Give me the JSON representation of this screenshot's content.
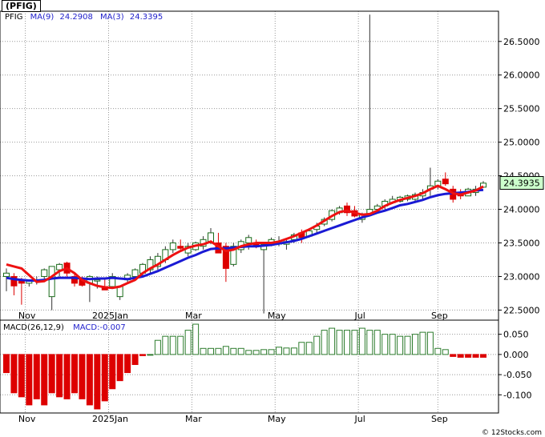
{
  "title": "(PFIG)",
  "credit": "© 12Stocks.com",
  "colors": {
    "up": "#1a6b1a",
    "down": "#dd0000",
    "ma9": "#1a1ad4",
    "ma3": "#ee1111",
    "macd_pos": "#2e7d2e",
    "macd_neg": "#dd0000",
    "grid": "#999999",
    "price_box": "#ccffcc",
    "legend_blue": "#2222cc"
  },
  "chart_data": [
    {
      "type": "candlestick",
      "legend": {
        "symbol": "PFIG",
        "ma9_label": "MA(9)",
        "ma9_value": "24.2908",
        "ma3_label": "MA(3)",
        "ma3_value": "24.3395"
      },
      "last_price": "24.3935",
      "ylim": [
        22.35,
        26.95
      ],
      "y_ticks": [
        "26.5000",
        "26.0000",
        "25.5000",
        "25.0000",
        "24.5000",
        "24.0000",
        "23.5000",
        "23.0000",
        "22.5000"
      ],
      "y_tick_values": [
        26.5,
        26.0,
        25.5,
        25.0,
        24.5,
        24.0,
        23.5,
        23.0,
        22.5
      ],
      "x_ticks": [
        "Nov",
        "2025Jan",
        "Mar",
        "May",
        "Jul",
        "Sep"
      ],
      "x_tick_weeks": [
        2.5,
        13.5,
        24.5,
        35.5,
        46.5,
        57
      ],
      "grid": true,
      "ohlc": [
        [
          23.0,
          23.12,
          22.78,
          23.05
        ],
        [
          23.0,
          23.05,
          22.72,
          22.86
        ],
        [
          22.95,
          22.98,
          22.58,
          22.9
        ],
        [
          22.9,
          22.95,
          22.85,
          22.93
        ],
        [
          22.93,
          23.0,
          22.88,
          22.95
        ],
        [
          23.0,
          23.12,
          22.95,
          23.1
        ],
        [
          22.7,
          23.12,
          22.5,
          23.15
        ],
        [
          23.1,
          23.2,
          23.0,
          23.18
        ],
        [
          23.2,
          23.22,
          23.0,
          23.05
        ],
        [
          23.0,
          23.05,
          22.85,
          22.9
        ],
        [
          22.95,
          23.0,
          22.85,
          22.87
        ],
        [
          22.9,
          23.02,
          22.62,
          23.0
        ],
        [
          22.95,
          23.0,
          22.82,
          22.95
        ],
        [
          22.85,
          22.98,
          22.8,
          22.8
        ],
        [
          22.85,
          23.05,
          22.82,
          23.0
        ],
        [
          22.7,
          22.85,
          22.65,
          22.85
        ],
        [
          22.95,
          23.05,
          22.9,
          23.02
        ],
        [
          23.0,
          23.12,
          22.98,
          23.1
        ],
        [
          23.05,
          23.2,
          23.0,
          23.18
        ],
        [
          23.1,
          23.3,
          23.05,
          23.25
        ],
        [
          23.15,
          23.35,
          23.1,
          23.3
        ],
        [
          23.25,
          23.45,
          23.2,
          23.4
        ],
        [
          23.4,
          23.55,
          23.35,
          23.5
        ],
        [
          23.45,
          23.55,
          23.4,
          23.42
        ],
        [
          23.35,
          23.5,
          23.3,
          23.45
        ],
        [
          23.4,
          23.52,
          23.38,
          23.5
        ],
        [
          23.45,
          23.6,
          23.4,
          23.55
        ],
        [
          23.5,
          23.72,
          23.48,
          23.65
        ],
        [
          23.5,
          23.65,
          23.35,
          23.35
        ],
        [
          23.45,
          23.5,
          22.92,
          23.12
        ],
        [
          23.18,
          23.5,
          23.15,
          23.45
        ],
        [
          23.4,
          23.55,
          23.35,
          23.52
        ],
        [
          23.5,
          23.62,
          23.4,
          23.58
        ],
        [
          23.5,
          23.55,
          23.42,
          23.45
        ],
        [
          23.4,
          23.5,
          22.45,
          23.48
        ],
        [
          23.5,
          23.58,
          23.45,
          23.55
        ],
        [
          23.5,
          23.6,
          23.45,
          23.5
        ],
        [
          23.48,
          23.55,
          23.4,
          23.52
        ],
        [
          23.55,
          23.65,
          23.5,
          23.62
        ],
        [
          23.65,
          23.7,
          23.5,
          23.58
        ],
        [
          23.6,
          23.72,
          23.58,
          23.68
        ],
        [
          23.7,
          23.8,
          23.65,
          23.75
        ],
        [
          23.78,
          23.88,
          23.75,
          23.85
        ],
        [
          23.85,
          24.0,
          23.82,
          23.98
        ],
        [
          23.95,
          24.05,
          23.92,
          24.02
        ],
        [
          24.05,
          24.1,
          23.9,
          23.95
        ],
        [
          23.98,
          24.05,
          23.88,
          23.9
        ],
        [
          23.85,
          23.95,
          23.8,
          23.92
        ],
        [
          23.92,
          26.9,
          23.9,
          24.0
        ],
        [
          24.0,
          24.08,
          23.95,
          24.05
        ],
        [
          24.05,
          24.15,
          24.0,
          24.12
        ],
        [
          24.1,
          24.2,
          24.08,
          24.15
        ],
        [
          24.12,
          24.2,
          24.1,
          24.18
        ],
        [
          24.15,
          24.22,
          24.12,
          24.2
        ],
        [
          24.15,
          24.25,
          24.12,
          24.22
        ],
        [
          24.2,
          24.3,
          24.15,
          24.25
        ],
        [
          24.3,
          24.62,
          24.2,
          24.35
        ],
        [
          24.35,
          24.45,
          24.3,
          24.42
        ],
        [
          24.45,
          24.55,
          24.35,
          24.38
        ],
        [
          24.3,
          24.35,
          24.1,
          24.15
        ],
        [
          24.25,
          24.3,
          24.15,
          24.2
        ],
        [
          24.2,
          24.32,
          24.2,
          24.3
        ],
        [
          24.25,
          24.35,
          24.2,
          24.3
        ],
        [
          24.33,
          24.42,
          24.32,
          24.39
        ]
      ],
      "ma9": [
        22.98,
        22.96,
        22.95,
        22.94,
        22.94,
        22.95,
        22.97,
        22.98,
        22.98,
        22.98,
        22.97,
        22.96,
        22.97,
        22.97,
        22.98,
        22.97,
        22.96,
        22.98,
        23.0,
        23.04,
        23.08,
        23.13,
        23.18,
        23.23,
        23.28,
        23.32,
        23.37,
        23.41,
        23.42,
        23.42,
        23.43,
        23.44,
        23.45,
        23.45,
        23.46,
        23.47,
        23.49,
        23.51,
        23.53,
        23.56,
        23.6,
        23.64,
        23.68,
        23.72,
        23.76,
        23.8,
        23.84,
        23.88,
        23.91,
        23.95,
        23.98,
        24.02,
        24.06,
        24.08,
        24.11,
        24.14,
        24.18,
        24.21,
        24.23,
        24.24,
        24.25,
        24.26,
        24.28,
        24.29
      ],
      "ma3": [
        23.18,
        23.15,
        23.12,
        23.02,
        22.92,
        22.93,
        23.0,
        23.08,
        23.12,
        23.05,
        22.95,
        22.9,
        22.86,
        22.84,
        22.83,
        22.85,
        22.9,
        22.95,
        23.05,
        23.12,
        23.18,
        23.25,
        23.32,
        23.38,
        23.43,
        23.46,
        23.48,
        23.52,
        23.45,
        23.38,
        23.4,
        23.45,
        23.48,
        23.5,
        23.5,
        23.5,
        23.52,
        23.56,
        23.6,
        23.65,
        23.7,
        23.76,
        23.83,
        23.9,
        23.96,
        23.98,
        23.95,
        23.92,
        23.93,
        23.98,
        24.05,
        24.1,
        24.14,
        24.17,
        24.2,
        24.24,
        24.3,
        24.35,
        24.3,
        24.24,
        24.22,
        24.25,
        24.28,
        24.34
      ]
    },
    {
      "type": "bar",
      "legend": {
        "label": "MACD(26,12,9)",
        "value_label": "MACD:-0.007"
      },
      "ylim": [
        -0.145,
        0.085
      ],
      "y_ticks": [
        "0.050",
        "0.000",
        "-0.050",
        "-0.100"
      ],
      "y_tick_values": [
        0.05,
        0.0,
        -0.05,
        -0.1
      ],
      "x_ticks": [
        "Nov",
        "2025Jan",
        "Mar",
        "May",
        "Jul",
        "Sep"
      ],
      "values": [
        -0.045,
        -0.095,
        -0.105,
        -0.125,
        -0.11,
        -0.125,
        -0.095,
        -0.105,
        -0.11,
        -0.095,
        -0.11,
        -0.125,
        -0.135,
        -0.115,
        -0.085,
        -0.065,
        -0.045,
        -0.025,
        -0.003,
        0.0,
        0.035,
        0.045,
        0.045,
        0.045,
        0.06,
        0.075,
        0.015,
        0.015,
        0.015,
        0.02,
        0.015,
        0.015,
        0.01,
        0.01,
        0.012,
        0.012,
        0.018,
        0.016,
        0.016,
        0.03,
        0.03,
        0.045,
        0.06,
        0.065,
        0.06,
        0.06,
        0.06,
        0.065,
        0.06,
        0.06,
        0.05,
        0.05,
        0.045,
        0.045,
        0.05,
        0.055,
        0.055,
        0.015,
        0.012,
        -0.005,
        -0.007,
        -0.007,
        -0.007,
        -0.007
      ]
    }
  ]
}
